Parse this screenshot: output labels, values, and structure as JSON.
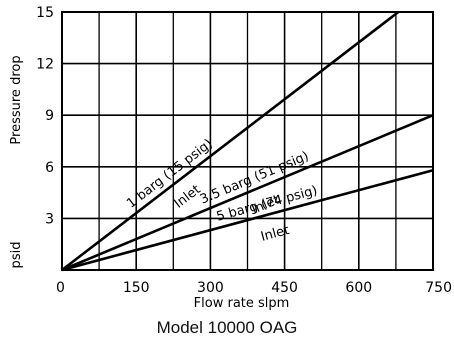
{
  "chart_data": {
    "type": "line",
    "title": "Model 10000 OAG",
    "xlabel": "Flow rate slpm",
    "ylabel": "Pressure drop",
    "yunit": "psid",
    "xlim": [
      0,
      750
    ],
    "ylim": [
      0,
      15
    ],
    "x_ticks": [
      0,
      150,
      300,
      450,
      600,
      750
    ],
    "x_tick_labels": [
      "0",
      "150",
      "300",
      "450",
      "600",
      "750"
    ],
    "y_ticks": [
      3,
      6,
      9,
      12,
      15
    ],
    "y_tick_labels": [
      "3",
      "6",
      "9",
      "12",
      "15"
    ],
    "grid": true,
    "series": [
      {
        "name": "1 barg (15 psig) Inlet",
        "label_line1": "1 barg (15 psig)",
        "label_line2": "Inlet",
        "x": [
          0,
          680
        ],
        "y": [
          0,
          15
        ]
      },
      {
        "name": "3.5 barg (51 psig) Inlet",
        "label_line1": "3.5 barg (51 psig)",
        "label_line2": "Inlet",
        "x": [
          0,
          750
        ],
        "y": [
          0,
          9
        ]
      },
      {
        "name": "5 barg (74 psig) Inlet",
        "label_line1": "5 barg (74 psig)",
        "label_line2": "Inlet",
        "x": [
          0,
          750
        ],
        "y": [
          0,
          5.8
        ]
      }
    ],
    "line_color": "#000000",
    "grid_color": "#000000"
  }
}
